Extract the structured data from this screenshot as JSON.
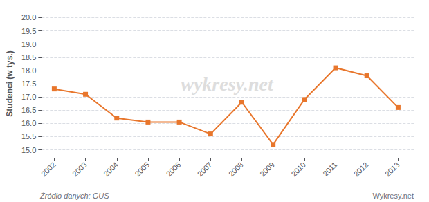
{
  "chart_data": {
    "type": "line",
    "ylabel": "Studenci (w tys.)",
    "x": [
      2002,
      2003,
      2004,
      2005,
      2006,
      2007,
      2008,
      2009,
      2010,
      2011,
      2012,
      2013
    ],
    "values": [
      17.3,
      17.1,
      16.2,
      16.05,
      16.05,
      15.6,
      16.8,
      15.2,
      16.9,
      18.1,
      17.8,
      16.6
    ],
    "color": "#e8762c",
    "marker": "square",
    "xlim": [
      2001.6,
      2013.5
    ],
    "xticks": [
      2002,
      2003,
      2004,
      2005,
      2006,
      2007,
      2008,
      2009,
      2010,
      2011,
      2012,
      2013
    ],
    "ylim": [
      14.7,
      20.3
    ],
    "yticks": [
      {
        "value": 15.0,
        "label": "15.0"
      },
      15.5,
      {
        "value": 16.0,
        "label": "16.0"
      },
      16.5,
      {
        "value": 17.0,
        "label": "17.0"
      },
      17.5,
      {
        "value": 18.0,
        "label": "18.0"
      },
      18.5,
      {
        "value": 19.0,
        "label": "19.0"
      },
      19.5,
      {
        "value": 20.0,
        "label": "20.0"
      }
    ],
    "grid": true,
    "annotations": [
      "wykresy.net",
      "Źródło danych: GUS",
      "Wykresy.net"
    ]
  }
}
